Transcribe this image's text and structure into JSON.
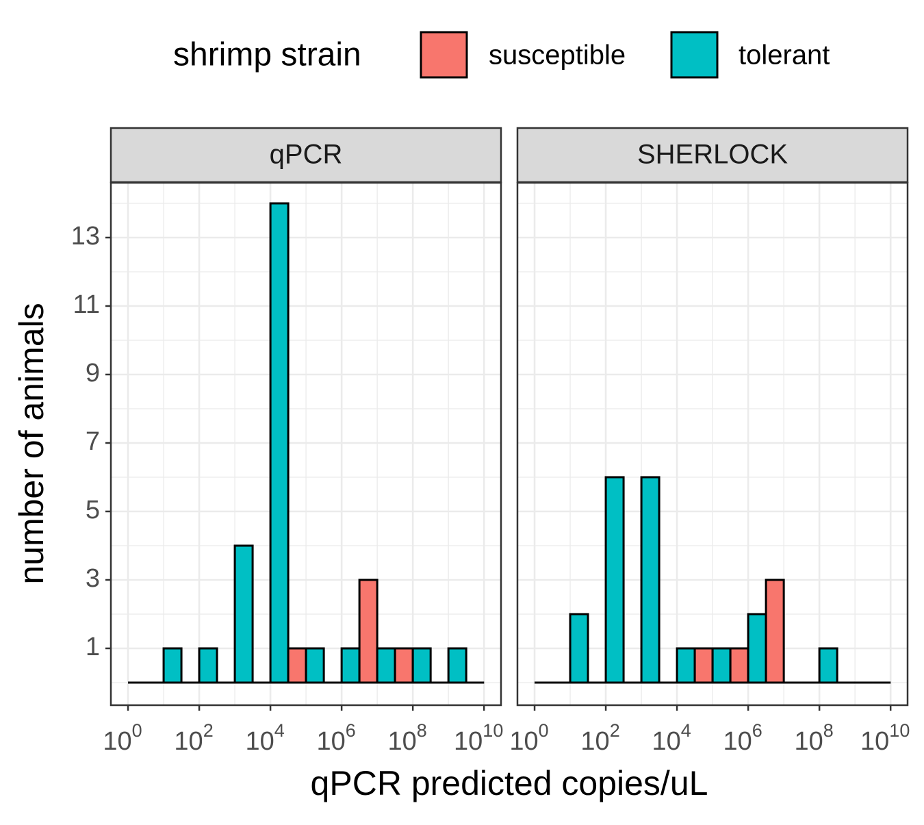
{
  "chart_data": {
    "type": "histogram",
    "legend_title": "shrimp strain",
    "x_label": "qPCR predicted copies/uL",
    "y_label": "number of animals",
    "x_scale": "log",
    "xlim": [
      0.33,
      30000000000
    ],
    "xticks": [
      {
        "value": 1,
        "label": "10",
        "exponent": "0"
      },
      {
        "value": 100,
        "label": "10",
        "exponent": "2"
      },
      {
        "value": 10000,
        "label": "10",
        "exponent": "4"
      },
      {
        "value": 1000000,
        "label": "10",
        "exponent": "6"
      },
      {
        "value": 100000000,
        "label": "10",
        "exponent": "8"
      },
      {
        "value": 10000000000,
        "label": "10",
        "exponent": "10"
      }
    ],
    "x_minor_ticks": [
      10,
      1000,
      100000,
      10000000,
      1000000000
    ],
    "ylim": [
      -0.66,
      14.6
    ],
    "yticks": [
      1,
      3,
      5,
      7,
      9,
      11,
      13
    ],
    "y_minor_ticks": [
      0,
      2,
      4,
      6,
      8,
      10,
      12,
      14
    ],
    "grid": true,
    "legend_position": "top",
    "bins": [
      1,
      3.162,
      10,
      31.62,
      100,
      316.2,
      1000,
      3162,
      10000,
      31623,
      100000,
      316228,
      1000000,
      3162278,
      10000000,
      31622777,
      100000000,
      316227766,
      1000000000,
      3162277660,
      10000000000
    ],
    "series": [
      {
        "name": "susceptible",
        "color": "#F8766D"
      },
      {
        "name": "tolerant",
        "color": "#00BFC4"
      }
    ],
    "facets": [
      {
        "title": "qPCR",
        "values": [
          [
            0,
            0,
            0,
            0,
            0,
            0,
            0,
            0,
            0,
            1,
            0,
            0,
            0,
            3,
            0,
            1,
            0,
            0,
            0,
            0
          ],
          [
            0,
            0,
            1,
            0,
            1,
            0,
            4,
            0,
            14,
            0,
            1,
            0,
            1,
            0,
            1,
            0,
            1,
            0,
            1,
            0
          ]
        ]
      },
      {
        "title": "SHERLOCK",
        "values": [
          [
            0,
            0,
            0,
            0,
            0,
            0,
            0,
            0,
            0,
            1,
            0,
            1,
            0,
            3,
            0,
            0,
            0,
            0,
            0,
            0
          ],
          [
            0,
            0,
            2,
            0,
            6,
            0,
            6,
            0,
            1,
            0,
            1,
            0,
            2,
            0,
            0,
            0,
            1,
            0,
            0,
            0
          ]
        ]
      }
    ]
  }
}
